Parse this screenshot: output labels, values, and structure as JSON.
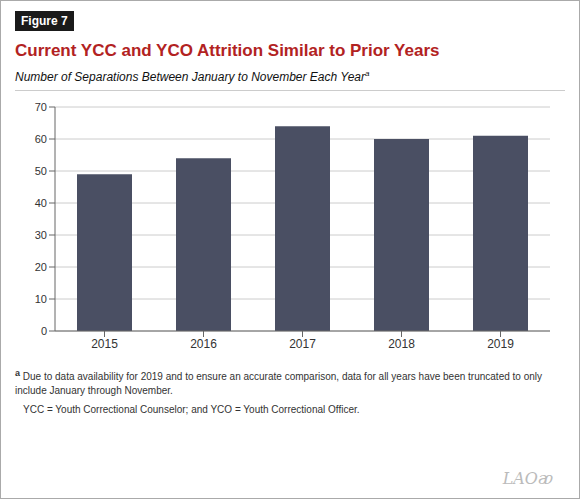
{
  "chart_data": {
    "type": "bar",
    "title": "Current YCC and YCO Attrition Similar to Prior Years",
    "subtitle": "Number of Separations Between January to November Each Year",
    "categories": [
      "2015",
      "2016",
      "2017",
      "2018",
      "2019"
    ],
    "values": [
      49,
      54,
      64,
      60,
      61
    ],
    "color": "#4a4f63",
    "ylim": [
      0,
      70
    ],
    "yticks": [
      0,
      10,
      20,
      30,
      40,
      50,
      60,
      70
    ],
    "grid": true,
    "annotations": [
      "Figure 7",
      "a",
      "Due to data availability for 2019 and to ensure an accurate comparison, data for all years have been truncated to only include January through November.",
      "YCC = Youth Correctional Counselor; and YCO = Youth Correctional Officer.",
      "LAOᴂ"
    ]
  }
}
